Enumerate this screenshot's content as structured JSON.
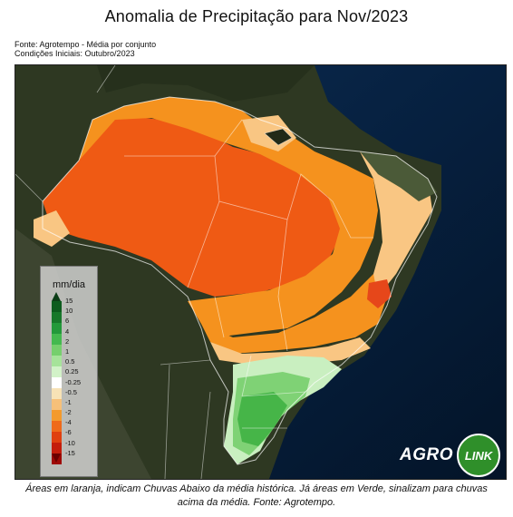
{
  "title": "Anomalia de Precipitação para Nov/2023",
  "source_line": "Fonte: Agrotempo - Média por conjunto",
  "conditions_line": "Condições Iniciais: Outubro/2023",
  "legend": {
    "title": "mm/dia",
    "ticks": [
      "15",
      "10",
      "6",
      "4",
      "2",
      "1",
      "0.5",
      "0.25",
      "-0.25",
      "-0.5",
      "-1",
      "-2",
      "-4",
      "-6",
      "-10",
      "-15"
    ],
    "colors": [
      "#0d5c1e",
      "#17782a",
      "#23993a",
      "#44b94f",
      "#76cf6d",
      "#a6e39a",
      "#d2f2c8",
      "#ffffff",
      "#f7e2b6",
      "#f6c079",
      "#f39a2c",
      "#ef6a1a",
      "#e04010",
      "#c41d0c",
      "#9e0a06"
    ]
  },
  "logo": {
    "agro": "AGRO",
    "link": "LINK"
  },
  "caption": "Áreas em laranja, indicam Chuvas Abaixo da média histórica. Já áreas em Verde, sinalizam para chuvas acima da média. Fonte: Agrotempo.",
  "colors": {
    "ocean": "#061830",
    "land": "#2f3a22",
    "deficit_strong": "#ef5a14",
    "deficit_moderate": "#f5921e",
    "deficit_light": "#f9c683",
    "surplus_light": "#c9efc0",
    "surplus_moderate": "#7fd275",
    "surplus_strong": "#46b548"
  }
}
